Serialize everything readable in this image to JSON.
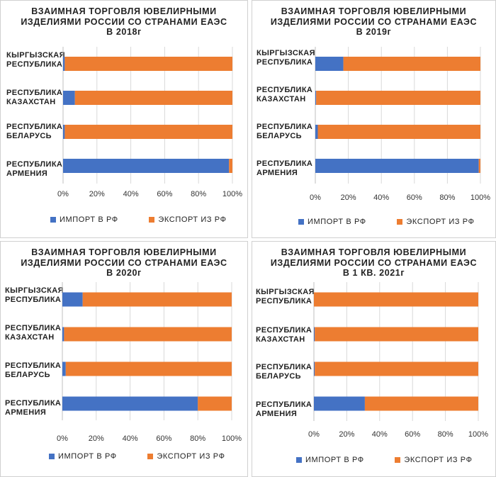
{
  "colors": {
    "import": "#4472C4",
    "export": "#ED7D31",
    "grid": "#d9d9d9",
    "axis": "#bfbfbf"
  },
  "chart_data": [
    {
      "type": "bar",
      "orientation": "horizontal-stacked-100",
      "title": "ВЗАИМНАЯ  ТОРГОВЛЯ ЮВЕЛИРНЫМИ\nИЗДЕЛИЯМИ  РОССИИ СО СТРАНАМИ ЕАЭС\nВ 2018г",
      "categories": [
        "КЫРГЫЗСКАЯ\nРЕСПУБЛИКА",
        "РЕСПУБЛИКА\nКАЗАХСТАН",
        "РЕСПУБЛИКА\nБЕЛАРУСЬ",
        "РЕСПУБЛИКА\nАРМЕНИЯ"
      ],
      "series": [
        {
          "name": "ИМПОРТ В РФ",
          "values": [
            1,
            7,
            1,
            98
          ]
        },
        {
          "name": "ЭКСПОРТ ИЗ РФ",
          "values": [
            99,
            93,
            99,
            2
          ]
        }
      ],
      "xticks": [
        "0%",
        "20%",
        "40%",
        "60%",
        "80%",
        "100%"
      ],
      "xlim": [
        0,
        100
      ],
      "grid": true,
      "legend": "bottom"
    },
    {
      "type": "bar",
      "orientation": "horizontal-stacked-100",
      "title": "ВЗАИМНАЯ  ТОРГОВЛЯ ЮВЕЛИРНЫМИ\nИЗДЕЛИЯМИ  РОССИИ СО СТРАНАМИ ЕАЭС\nВ 2019г",
      "categories": [
        "КЫРГЫЗСКАЯ\nРЕСПУБЛИКА",
        "РЕСПУБЛИКА\nКАЗАХСТАН",
        "РЕСПУБЛИКА\nБЕЛАРУСЬ",
        "РЕСПУБЛИКА\nАРМЕНИЯ"
      ],
      "series": [
        {
          "name": "ИМПОРТ В РФ",
          "values": [
            17,
            0.5,
            1.5,
            99
          ]
        },
        {
          "name": "ЭКСПОРТ ИЗ РФ",
          "values": [
            83,
            99.5,
            98.5,
            1
          ]
        }
      ],
      "xticks": [
        "0%",
        "20%",
        "40%",
        "60%",
        "80%",
        "100%"
      ],
      "xlim": [
        0,
        100
      ],
      "grid": true,
      "legend": "bottom"
    },
    {
      "type": "bar",
      "orientation": "horizontal-stacked-100",
      "title": "ВЗАИМНАЯ  ТОРГОВЛЯ ЮВЕЛИРНЫМИ\nИЗДЕЛИЯМИ  РОССИИ СО СТРАНАМИ ЕАЭС\nВ 2020г",
      "categories": [
        "КЫРГЫЗСКАЯ\nРЕСПУБЛИКА",
        "РЕСПУБЛИКА\nКАЗАХСТАН",
        "РЕСПУБЛИКА\nБЕЛАРУСЬ",
        "РЕСПУБЛИКА\nАРМЕНИЯ"
      ],
      "series": [
        {
          "name": "ИМПОРТ В РФ",
          "values": [
            12,
            1,
            2,
            80
          ]
        },
        {
          "name": "ЭКСПОРТ ИЗ РФ",
          "values": [
            88,
            99,
            98,
            20
          ]
        }
      ],
      "xticks": [
        "0%",
        "20%",
        "40%",
        "60%",
        "80%",
        "100%"
      ],
      "xlim": [
        0,
        100
      ],
      "grid": true,
      "legend": "bottom"
    },
    {
      "type": "bar",
      "orientation": "horizontal-stacked-100",
      "title": "ВЗАИМНАЯ  ТОРГОВЛЯ ЮВЕЛИРНЫМИ\nИЗДЕЛИЯМИ  РОССИИ СО СТРАНАМИ ЕАЭС\nВ 1 КВ. 2021г",
      "categories": [
        "КЫРГЫЗСКАЯ\nРЕСПУБЛИКА",
        "РЕСПУБЛИКА\nКАЗАХСТАН",
        "РЕСПУБЛИКА\nБЕЛАРУСЬ",
        "РЕСПУБЛИКА\nАРМЕНИЯ"
      ],
      "series": [
        {
          "name": "ИМПОРТ В РФ",
          "values": [
            0,
            0.5,
            0.5,
            31
          ]
        },
        {
          "name": "ЭКСПОРТ ИЗ РФ",
          "values": [
            100,
            99.5,
            99.5,
            69
          ]
        }
      ],
      "xticks": [
        "0%",
        "20%",
        "40%",
        "60%",
        "80%",
        "100%"
      ],
      "xlim": [
        0,
        100
      ],
      "grid": true,
      "legend": "bottom"
    }
  ]
}
